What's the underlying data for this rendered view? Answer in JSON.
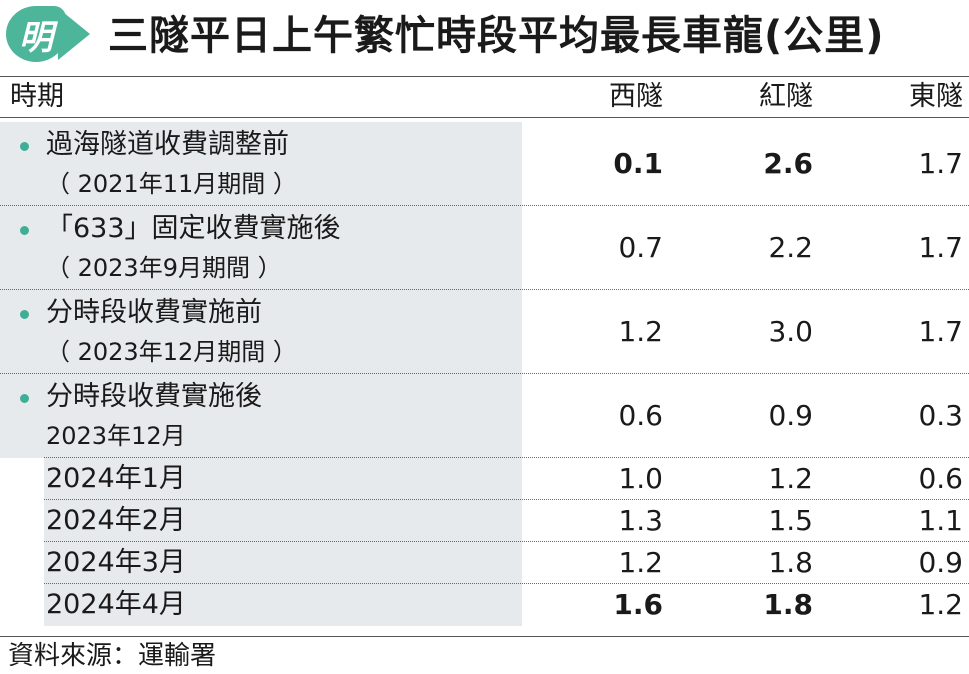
{
  "header": {
    "logo_char": "明",
    "title": "三隧平日上午繁忙時段平均最長車龍(公里)"
  },
  "columns": {
    "period": "時期",
    "west": "西隧",
    "cross": "紅隧",
    "east": "東隧"
  },
  "colors": {
    "accent": "#4db59a",
    "shade": "#e6eaec"
  },
  "chart_data": {
    "type": "table",
    "title": "三隧平日上午繁忙時段平均最長車龍(公里)",
    "columns": [
      "時期",
      "西隧",
      "紅隧",
      "東隧"
    ],
    "rows": [
      {
        "label": "過海隧道收費調整前",
        "sub": "（ 2021年11月期間 ）",
        "bullet": true,
        "west": "0.1",
        "cross": "2.6",
        "east": "1.7",
        "bold_west": true,
        "bold_cross": true
      },
      {
        "label": "「633」固定收費實施後",
        "sub": "（ 2023年9月期間 ）",
        "bullet": true,
        "west": "0.7",
        "cross": "2.2",
        "east": "1.7",
        "bold_west": false,
        "bold_cross": false
      },
      {
        "label": "分時段收費實施前",
        "sub": "（ 2023年12月期間 ）",
        "bullet": true,
        "west": "1.2",
        "cross": "3.0",
        "east": "1.7",
        "bold_west": false,
        "bold_cross": false
      },
      {
        "label": "分時段收費實施後",
        "sub": "2023年12月",
        "bullet": true,
        "west": "0.6",
        "cross": "0.9",
        "east": "0.3",
        "bold_west": false,
        "bold_cross": false
      },
      {
        "label": "",
        "sub": "2024年1月",
        "bullet": false,
        "west": "1.0",
        "cross": "1.2",
        "east": "0.6",
        "bold_west": false,
        "bold_cross": false
      },
      {
        "label": "",
        "sub": "2024年2月",
        "bullet": false,
        "west": "1.3",
        "cross": "1.5",
        "east": "1.1",
        "bold_west": false,
        "bold_cross": false
      },
      {
        "label": "",
        "sub": "2024年3月",
        "bullet": false,
        "west": "1.2",
        "cross": "1.8",
        "east": "0.9",
        "bold_west": false,
        "bold_cross": false
      },
      {
        "label": "",
        "sub": "2024年4月",
        "bullet": false,
        "west": "1.6",
        "cross": "1.8",
        "east": "1.2",
        "bold_west": true,
        "bold_cross": true
      }
    ]
  },
  "source": "資料來源：運輸署"
}
